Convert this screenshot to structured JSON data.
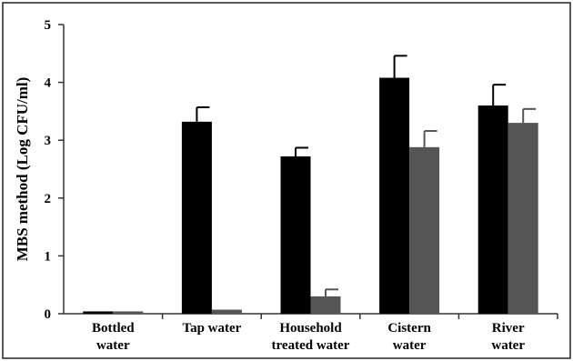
{
  "chart_data": {
    "type": "bar",
    "title": "",
    "xlabel": "",
    "ylabel": "MBS method (Log CFU/ml)",
    "ylim": [
      0,
      5
    ],
    "yticks": [
      "0",
      "1",
      "2",
      "3",
      "4",
      "5"
    ],
    "categories": [
      [
        "Bottled",
        "water"
      ],
      [
        "Tap water"
      ],
      [
        "Household",
        "treated water"
      ],
      [
        "Cistern",
        "water"
      ],
      [
        "River",
        "water"
      ]
    ],
    "series": [
      {
        "values": [
          0.04,
          3.32,
          2.72,
          4.08,
          3.6
        ],
        "errors": [
          0,
          0.25,
          0.15,
          0.38,
          0.36
        ],
        "color": "#000000"
      },
      {
        "values": [
          0.04,
          0.07,
          0.3,
          2.88,
          3.3
        ],
        "errors": [
          0,
          0,
          0.12,
          0.28,
          0.24
        ],
        "color": "#555555"
      }
    ],
    "grid": false,
    "legend": "none"
  }
}
